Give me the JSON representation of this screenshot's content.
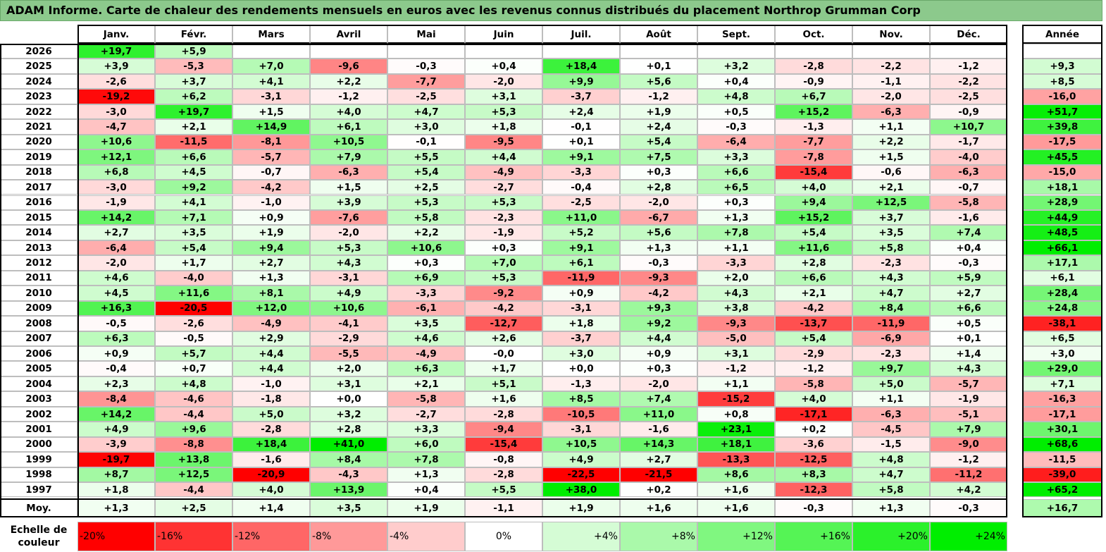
{
  "title": "ADAM Informe. Carte de chaleur des rendements mensuels en euros avec les revenus connus distribués du placement Northrop Grumman Corp",
  "chart_data": {
    "type": "heatmap",
    "title": "ADAM Informe. Carte de chaleur des rendements mensuels en euros avec les revenus connus distribués du placement Northrop Grumman Corp",
    "months": [
      "Janv.",
      "Févr.",
      "Mars",
      "Avril",
      "Mai",
      "Juin",
      "Juil.",
      "Août",
      "Sept.",
      "Oct.",
      "Nov.",
      "Déc."
    ],
    "year_header": "Année",
    "avg_label": "Moy.",
    "rows": [
      {
        "year": "2026",
        "m": [
          "+19,7",
          "+5,9",
          "",
          "",
          "",
          "",
          "",
          "",
          "",
          "",
          "",
          ""
        ],
        "y": ""
      },
      {
        "year": "2025",
        "m": [
          "+3,9",
          "-5,3",
          "+7,0",
          "-9,6",
          "-0,3",
          "+0,4",
          "+18,4",
          "+0,1",
          "+3,2",
          "-2,8",
          "-2,2",
          "-1,2"
        ],
        "y": "+9,3"
      },
      {
        "year": "2024",
        "m": [
          "-2,6",
          "+3,7",
          "+4,1",
          "+2,2",
          "-7,7",
          "-2,0",
          "+9,9",
          "+5,6",
          "+0,4",
          "-0,9",
          "-1,1",
          "-2,2"
        ],
        "y": "+8,5"
      },
      {
        "year": "2023",
        "m": [
          "-19,2",
          "+6,2",
          "-3,1",
          "-1,2",
          "-2,5",
          "+3,1",
          "-3,7",
          "-1,2",
          "+4,8",
          "+6,7",
          "-2,0",
          "-2,5"
        ],
        "y": "-16,0"
      },
      {
        "year": "2022",
        "m": [
          "-3,0",
          "+19,7",
          "+1,5",
          "+4,0",
          "+4,7",
          "+5,3",
          "+2,4",
          "+1,9",
          "+0,5",
          "+15,2",
          "-6,3",
          "-0,9"
        ],
        "y": "+51,7"
      },
      {
        "year": "2021",
        "m": [
          "-4,7",
          "+2,1",
          "+14,9",
          "+6,1",
          "+3,0",
          "+1,8",
          "-0,1",
          "+2,4",
          "-0,3",
          "-1,3",
          "+1,1",
          "+10,7"
        ],
        "y": "+39,8"
      },
      {
        "year": "2020",
        "m": [
          "+10,6",
          "-11,5",
          "-8,1",
          "+10,5",
          "-0,1",
          "-9,5",
          "+0,1",
          "+5,4",
          "-6,4",
          "-7,7",
          "+2,2",
          "-1,7"
        ],
        "y": "-17,5"
      },
      {
        "year": "2019",
        "m": [
          "+12,1",
          "+6,6",
          "-5,7",
          "+7,9",
          "+5,5",
          "+4,4",
          "+9,1",
          "+7,5",
          "+3,3",
          "-7,8",
          "+1,5",
          "-4,0"
        ],
        "y": "+45,5"
      },
      {
        "year": "2018",
        "m": [
          "+6,8",
          "+4,5",
          "-0,7",
          "-6,3",
          "+5,4",
          "-4,9",
          "-3,3",
          "+0,3",
          "+6,6",
          "-15,4",
          "-0,6",
          "-6,3"
        ],
        "y": "-15,0"
      },
      {
        "year": "2017",
        "m": [
          "-3,0",
          "+9,2",
          "-4,2",
          "+1,5",
          "+2,5",
          "-2,7",
          "-0,4",
          "+2,8",
          "+6,5",
          "+4,0",
          "+2,1",
          "-0,7"
        ],
        "y": "+18,1"
      },
      {
        "year": "2016",
        "m": [
          "-1,9",
          "+4,1",
          "-1,0",
          "+3,9",
          "+5,3",
          "+5,3",
          "-2,5",
          "-2,0",
          "+0,3",
          "+9,4",
          "+12,5",
          "-5,8"
        ],
        "y": "+28,9"
      },
      {
        "year": "2015",
        "m": [
          "+14,2",
          "+7,1",
          "+0,9",
          "-7,6",
          "+5,8",
          "-2,3",
          "+11,0",
          "-6,7",
          "+1,3",
          "+15,2",
          "+3,7",
          "-1,6"
        ],
        "y": "+44,9"
      },
      {
        "year": "2014",
        "m": [
          "+2,7",
          "+3,5",
          "+1,9",
          "-2,0",
          "+2,2",
          "-1,9",
          "+5,2",
          "+5,6",
          "+7,8",
          "+5,4",
          "+3,5",
          "+7,4"
        ],
        "y": "+48,5"
      },
      {
        "year": "2013",
        "m": [
          "-6,4",
          "+5,4",
          "+9,4",
          "+5,3",
          "+10,6",
          "+0,3",
          "+9,1",
          "+1,3",
          "+1,1",
          "+11,6",
          "+5,8",
          "+0,4"
        ],
        "y": "+66,1"
      },
      {
        "year": "2012",
        "m": [
          "-2,0",
          "+1,7",
          "+2,7",
          "+4,3",
          "+0,3",
          "+7,0",
          "+6,1",
          "-0,3",
          "-3,3",
          "+2,8",
          "-2,3",
          "-0,3"
        ],
        "y": "+17,1"
      },
      {
        "year": "2011",
        "m": [
          "+4,6",
          "-4,0",
          "+1,3",
          "-3,1",
          "+6,9",
          "+5,3",
          "-11,9",
          "-9,3",
          "+2,0",
          "+6,6",
          "+4,3",
          "+5,9"
        ],
        "y": "+6,1"
      },
      {
        "year": "2010",
        "m": [
          "+4,5",
          "+11,6",
          "+8,1",
          "+4,9",
          "-3,3",
          "-9,2",
          "+0,9",
          "-4,2",
          "+4,3",
          "+2,1",
          "+4,7",
          "+2,7"
        ],
        "y": "+28,4"
      },
      {
        "year": "2009",
        "m": [
          "+16,3",
          "-20,5",
          "+12,0",
          "+10,6",
          "-6,1",
          "-4,2",
          "-3,1",
          "+9,3",
          "+3,8",
          "-4,2",
          "+8,4",
          "+6,6"
        ],
        "y": "+24,8"
      },
      {
        "year": "2008",
        "m": [
          "-0,5",
          "-2,6",
          "-4,9",
          "-4,1",
          "+3,5",
          "-12,7",
          "+1,8",
          "+9,2",
          "-9,3",
          "-13,7",
          "-11,9",
          "+0,5"
        ],
        "y": "-38,1"
      },
      {
        "year": "2007",
        "m": [
          "+6,3",
          "-0,5",
          "+2,9",
          "-2,9",
          "+4,6",
          "+2,6",
          "-3,7",
          "+4,4",
          "-5,0",
          "+5,4",
          "-6,9",
          "+0,1"
        ],
        "y": "+6,5"
      },
      {
        "year": "2006",
        "m": [
          "+0,9",
          "+5,7",
          "+4,4",
          "-5,5",
          "-4,9",
          "-0,0",
          "+3,0",
          "+0,9",
          "+3,1",
          "-2,9",
          "-2,3",
          "+1,4"
        ],
        "y": "+3,0"
      },
      {
        "year": "2005",
        "m": [
          "-0,4",
          "+0,7",
          "+4,4",
          "+2,0",
          "+6,3",
          "+1,7",
          "+0,0",
          "+0,3",
          "-1,2",
          "-1,2",
          "+9,7",
          "+4,3"
        ],
        "y": "+29,0"
      },
      {
        "year": "2004",
        "m": [
          "+2,3",
          "+4,8",
          "-1,0",
          "+3,1",
          "+2,1",
          "+5,1",
          "-1,3",
          "-2,0",
          "+1,1",
          "-5,8",
          "+5,0",
          "-5,7"
        ],
        "y": "+7,1"
      },
      {
        "year": "2003",
        "m": [
          "-8,4",
          "-4,6",
          "-1,8",
          "+0,0",
          "-5,8",
          "+1,6",
          "+8,5",
          "+7,4",
          "-15,2",
          "+4,0",
          "+1,1",
          "-1,9"
        ],
        "y": "-16,3"
      },
      {
        "year": "2002",
        "m": [
          "+14,2",
          "-4,4",
          "+5,0",
          "+3,2",
          "-2,7",
          "-2,8",
          "-10,5",
          "+11,0",
          "+0,8",
          "-17,1",
          "-6,3",
          "-5,1"
        ],
        "y": "-17,1"
      },
      {
        "year": "2001",
        "m": [
          "+4,9",
          "+9,6",
          "-2,8",
          "+2,8",
          "+3,3",
          "-9,4",
          "-3,1",
          "-1,6",
          "+23,1",
          "+0,2",
          "-4,5",
          "+7,9"
        ],
        "y": "+30,1"
      },
      {
        "year": "2000",
        "m": [
          "-3,9",
          "-8,8",
          "+18,4",
          "+41,0",
          "+6,0",
          "-15,4",
          "+10,5",
          "+14,3",
          "+18,1",
          "-3,6",
          "-1,5",
          "-9,0"
        ],
        "y": "+68,6"
      },
      {
        "year": "1999",
        "m": [
          "-19,7",
          "+13,8",
          "-1,6",
          "+8,4",
          "+7,8",
          "-0,8",
          "+4,9",
          "+2,7",
          "-13,3",
          "-12,5",
          "+4,8",
          "-1,2"
        ],
        "y": "-11,5"
      },
      {
        "year": "1998",
        "m": [
          "+8,7",
          "+12,5",
          "-20,9",
          "-4,3",
          "+1,3",
          "-2,8",
          "-22,5",
          "-21,5",
          "+8,6",
          "+8,3",
          "+4,7",
          "-11,2"
        ],
        "y": "-39,0"
      },
      {
        "year": "1997",
        "m": [
          "+1,8",
          "-4,4",
          "+4,0",
          "+13,9",
          "+0,4",
          "+5,5",
          "+38,0",
          "+0,2",
          "+1,6",
          "-12,3",
          "+5,8",
          "+4,2"
        ],
        "y": "+65,2"
      }
    ],
    "averages": [
      "+1,3",
      "+2,5",
      "+1,4",
      "+3,5",
      "+1,9",
      "-1,1",
      "+1,9",
      "+1,6",
      "+1,6",
      "-0,3",
      "+1,3",
      "-0,3"
    ],
    "average_year": "+16,7",
    "scale_label": "Echelle de couleur",
    "scale": [
      "-20%",
      "-16%",
      "-12%",
      "-8%",
      "-4%",
      "0%",
      "+4%",
      "+8%",
      "+12%",
      "+16%",
      "+20%",
      "+24%"
    ],
    "colors": {
      "negative": "#ff0000",
      "positive": "#00ee00",
      "neutral": "#ffffff"
    }
  }
}
